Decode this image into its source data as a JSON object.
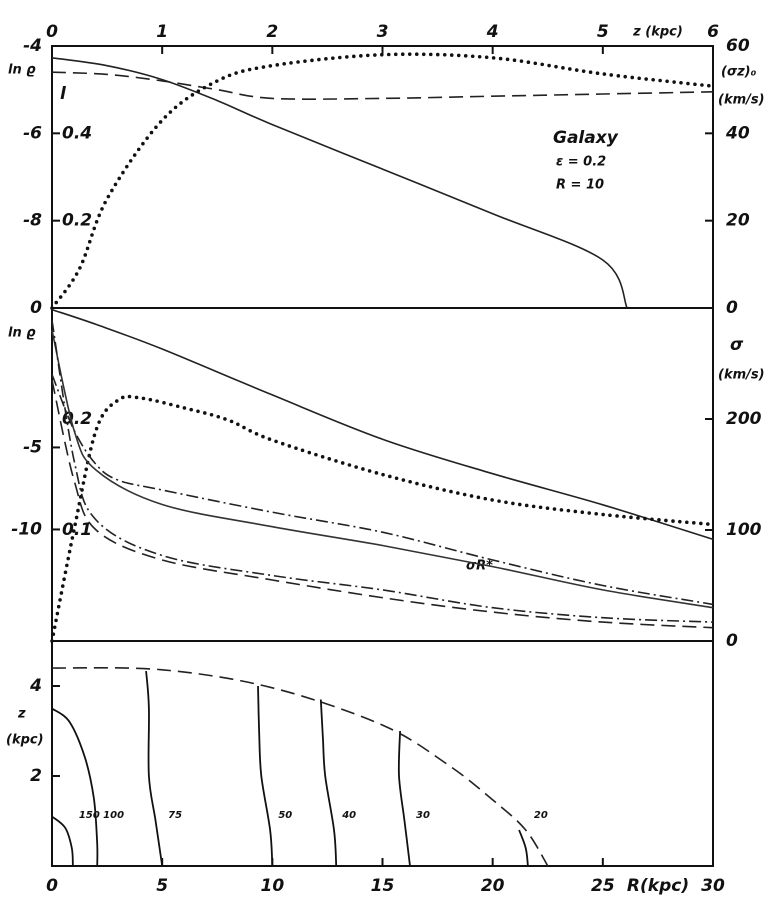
{
  "chart_data": [
    {
      "type": "line",
      "xaxis": "top",
      "xlabel": "z (kpc)",
      "xlim": [
        0,
        6
      ],
      "xticks": [
        0,
        1,
        2,
        3,
        4,
        5,
        6
      ],
      "ylabel": "ln ϱ",
      "ylim": [
        -10,
        -4
      ],
      "yticks": [
        -4,
        -6,
        -8
      ],
      "y2label": "(σz)₀",
      "y2unit": "(km/s)",
      "y2lim": [
        0,
        60
      ],
      "y2ticks": [
        0,
        20,
        40,
        60
      ],
      "y3lim": [
        0,
        0.6
      ],
      "y3ticks": [
        0,
        0.2,
        0.4
      ],
      "annotations": [
        "Galaxy",
        "ε = 0.2",
        "R = 10"
      ],
      "series": [
        {
          "color": "#222222",
          "dash": "solid",
          "x": [
            0,
            0.5,
            1,
            1.5,
            2,
            3,
            4,
            5,
            5.22
          ],
          "values": [
            -4.27,
            -4.45,
            -4.77,
            -5.25,
            -5.8,
            -6.82,
            -7.84,
            -8.9,
            -10
          ]
        },
        {
          "name": "l",
          "color": "#222222",
          "dash": "dash",
          "axis": "y3",
          "x": [
            0,
            0.5,
            1,
            1.5,
            2,
            3,
            4,
            5,
            6
          ],
          "values": [
            0.54,
            0.535,
            0.52,
            0.5,
            0.48,
            0.48,
            0.485,
            0.49,
            0.495
          ]
        },
        {
          "color": "#111111",
          "dash": "dot",
          "axis": "y2",
          "x": [
            0,
            0.25,
            0.5,
            1,
            1.5,
            2,
            3,
            4,
            5,
            6
          ],
          "values": [
            0,
            9,
            25,
            43,
            52,
            55.5,
            58,
            57.3,
            53.6,
            50.8
          ]
        }
      ]
    },
    {
      "type": "line",
      "xaxis": "none",
      "xlim": [
        0,
        30
      ],
      "ylabel": "ln ϱ",
      "ylim": [
        -16.8,
        3.5
      ],
      "yticks": [
        -5,
        -10
      ],
      "y2label": "σ",
      "y2unit": "(km/s)",
      "y2lim": [
        0,
        300
      ],
      "y2ticks": [
        0,
        100,
        200
      ],
      "y3lim": [
        0,
        0.3
      ],
      "y3ticks": [
        0.1,
        0.2
      ],
      "annotations": [
        "σR*"
      ],
      "series": [
        {
          "color": "#222222",
          "dash": "solid",
          "x": [
            0,
            2,
            5,
            10,
            15,
            20,
            25,
            30
          ],
          "values": [
            3.4,
            2.5,
            1.0,
            -1.8,
            -4.5,
            -6.6,
            -8.5,
            -10.6
          ]
        },
        {
          "color": "#111111",
          "dash": "dot",
          "axis": "y2",
          "x": [
            0,
            1,
            2,
            3,
            4,
            6,
            8,
            10,
            15,
            20,
            25,
            30
          ],
          "values": [
            0,
            100,
            190,
            217,
            219,
            210,
            199,
            181,
            150,
            127,
            114,
            105
          ]
        },
        {
          "color": "#222222",
          "dash": "dashdot",
          "axis": "y2",
          "x": [
            0,
            1,
            2,
            3,
            5,
            10,
            15,
            20,
            25,
            30
          ],
          "values": [
            240,
            190,
            159,
            145,
            136,
            116,
            98,
            73,
            50,
            33
          ]
        },
        {
          "color": "#333333",
          "dash": "solid",
          "axis": "y2",
          "x": [
            0,
            1,
            2,
            5,
            10,
            15,
            20,
            25,
            30
          ],
          "values": [
            280,
            190,
            154,
            123,
            103,
            86,
            67,
            46,
            30
          ]
        },
        {
          "color": "#222222",
          "dash": "dashdot",
          "axis": "y2",
          "x": [
            0,
            1,
            2,
            5,
            10,
            15,
            20,
            25,
            30
          ],
          "values": [
            289,
            163,
            109,
            77,
            59,
            46,
            30,
            21,
            17
          ]
        },
        {
          "color": "#222222",
          "dash": "dash",
          "axis": "y2",
          "x": [
            0,
            1,
            2,
            5,
            10,
            15,
            20,
            25,
            30
          ],
          "values": [
            235,
            145,
            100,
            73,
            55,
            39,
            26,
            17,
            12
          ]
        }
      ]
    },
    {
      "type": "contour",
      "xaxis": "bottom",
      "xlabel": "R(kpc)",
      "xlim": [
        0,
        30
      ],
      "xticks": [
        0,
        5,
        10,
        15,
        20,
        25,
        30
      ],
      "ylabel": "z",
      "yunit": "(kpc)",
      "ylim": [
        0,
        5
      ],
      "yticks": [
        2,
        4
      ],
      "contours": [
        {
          "level": 150,
          "R": [
            0,
            0.6,
            0.9,
            0.95
          ],
          "z": [
            1.1,
            0.85,
            0.4,
            0
          ]
        },
        {
          "level": 100,
          "R": [
            0,
            0.8,
            1.5,
            1.9,
            2.05,
            2.05
          ],
          "z": [
            3.5,
            3.2,
            2.4,
            1.5,
            0.5,
            0
          ]
        },
        {
          "level": 75,
          "R": [
            4.27,
            4.4,
            4.4,
            4.7,
            5.0
          ],
          "z": [
            4.33,
            3.5,
            2,
            1,
            0
          ]
        },
        {
          "level": 50,
          "R": [
            9.35,
            9.4,
            9.5,
            9.9,
            10.0
          ],
          "z": [
            4.0,
            3,
            2,
            0.8,
            0
          ]
        },
        {
          "level": 40,
          "R": [
            12.2,
            12.3,
            12.4,
            12.8,
            12.9
          ],
          "z": [
            3.7,
            2.8,
            2,
            0.8,
            0
          ]
        },
        {
          "level": 30,
          "R": [
            15.8,
            15.75,
            16.0,
            16.25
          ],
          "z": [
            3.0,
            2,
            1,
            0
          ]
        },
        {
          "level": 20,
          "R": [
            21.2,
            21.5,
            21.6
          ],
          "z": [
            0.8,
            0.4,
            0
          ]
        }
      ],
      "boundary": {
        "dash": "dash",
        "R": [
          0,
          5,
          10,
          15,
          18,
          20,
          21.5,
          22.5
        ],
        "z": [
          4.4,
          4.36,
          3.96,
          3.13,
          2.24,
          1.47,
          0.8,
          0
        ]
      }
    }
  ]
}
